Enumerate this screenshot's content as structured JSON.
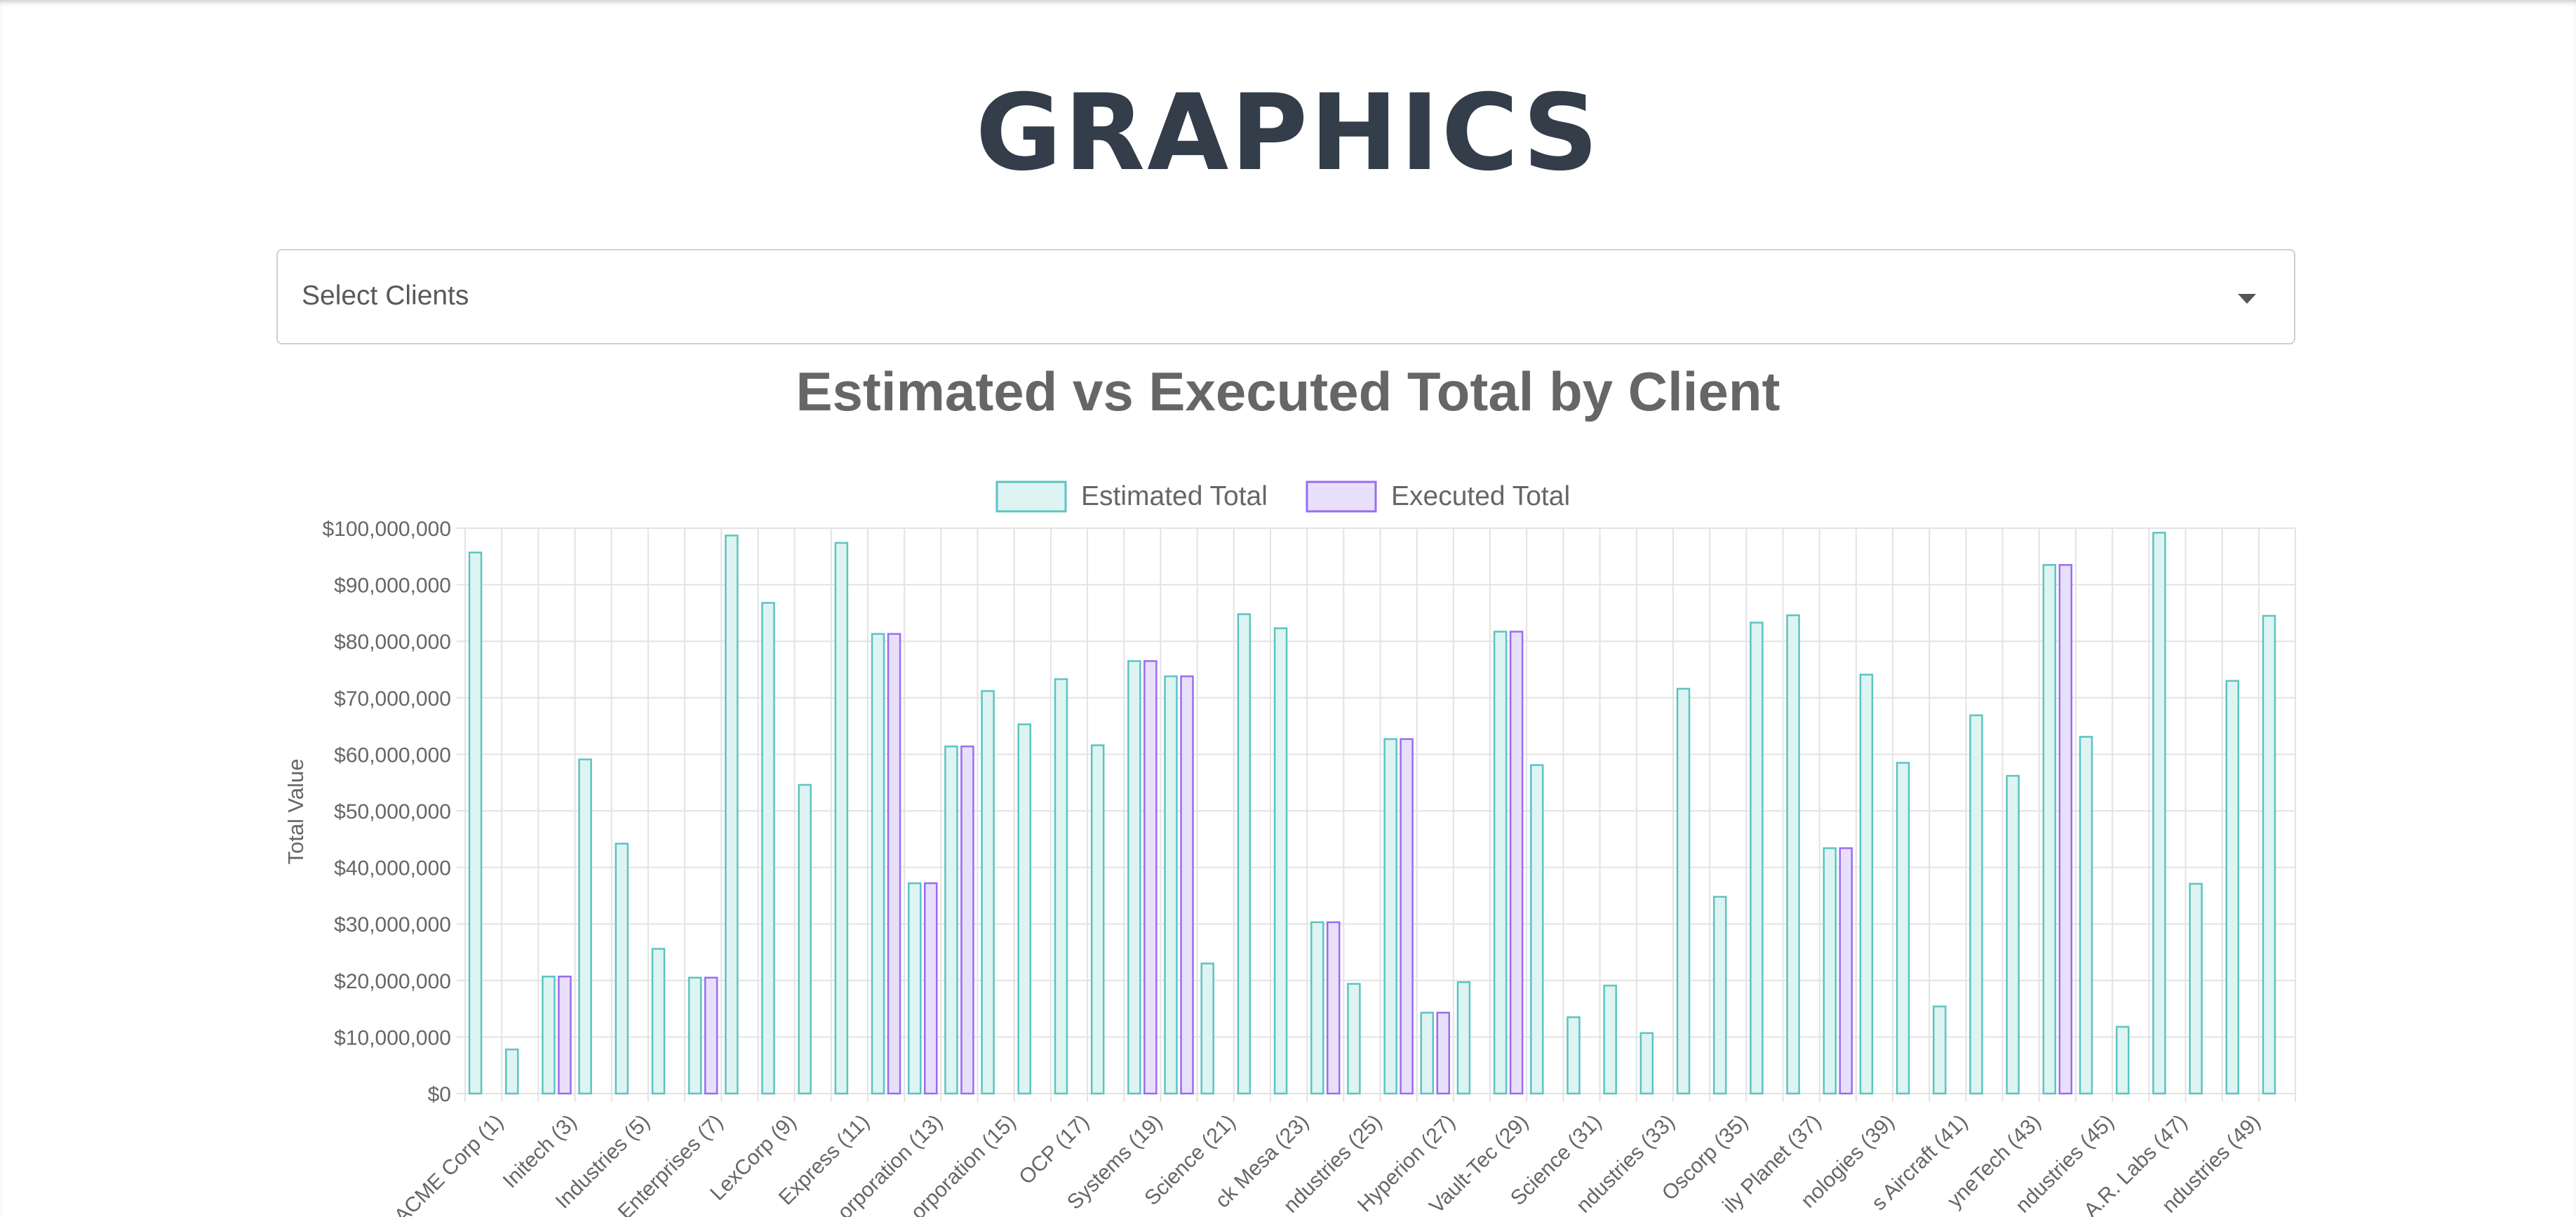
{
  "page": {
    "title": "GRAPHICS"
  },
  "client_select": {
    "placeholder": "Select Clients"
  },
  "colors": {
    "estimated_fill": "#ddf4f3",
    "estimated_border": "#5cc4c0",
    "executed_fill": "#e8e0fb",
    "executed_border": "#9a6cf0",
    "grid": "#e3e3e3",
    "text": "#666666"
  },
  "chart_data": {
    "type": "bar",
    "title": "Estimated vs Executed Total by Client",
    "ylabel": "Total Value",
    "ylim": [
      0,
      100000000
    ],
    "y_ticks": [
      "$0",
      "$10,000,000",
      "$20,000,000",
      "$30,000,000",
      "$40,000,000",
      "$50,000,000",
      "$60,000,000",
      "$70,000,000",
      "$80,000,000",
      "$90,000,000",
      "$100,000,000"
    ],
    "legend_position": "top-center",
    "grid": true,
    "categories": [
      "ACME Corp (1)",
      "",
      "Initech (3)",
      "",
      "Industries (5)",
      "",
      "Enterprises (7)",
      "",
      "LexCorp (9)",
      "",
      "Express (11)",
      "",
      "orporation (13)",
      "",
      "orporation (15)",
      "",
      "OCP (17)",
      "",
      "Systems (19)",
      "",
      "Science (21)",
      "",
      "ck Mesa (23)",
      "",
      "ndustries (25)",
      "",
      "Hyperion (27)",
      "",
      "Vault-Tec (29)",
      "",
      "Science (31)",
      "",
      "ndustries (33)",
      "",
      "Oscorp (35)",
      "",
      "ily Planet (37)",
      "",
      "nologies (39)",
      "",
      "s Aircraft (41)",
      "",
      "yneTech (43)",
      "",
      "ndustries (45)",
      "",
      "A.R. Labs (47)",
      "",
      "ndustries (49)",
      ""
    ],
    "series": [
      {
        "name": "Estimated Total",
        "values": [
          95700000,
          7800000,
          20700000,
          59100000,
          44200000,
          25600000,
          20500000,
          98700000,
          86800000,
          54600000,
          97400000,
          81300000,
          37200000,
          61400000,
          71200000,
          65300000,
          73300000,
          61600000,
          76500000,
          73800000,
          23000000,
          84800000,
          82300000,
          30300000,
          19400000,
          62700000,
          14300000,
          19700000,
          81700000,
          58100000,
          13500000,
          19100000,
          10700000,
          71600000,
          34800000,
          83300000,
          84600000,
          43400000,
          74100000,
          58500000,
          15400000,
          66900000,
          56200000,
          93500000,
          63100000,
          11800000,
          99200000,
          37100000,
          73000000,
          84500000
        ]
      },
      {
        "name": "Executed Total",
        "values": [
          0,
          0,
          20700000,
          0,
          0,
          0,
          20500000,
          0,
          0,
          0,
          0,
          81300000,
          37200000,
          61400000,
          0,
          0,
          0,
          0,
          76500000,
          73800000,
          0,
          0,
          0,
          30300000,
          0,
          62700000,
          14300000,
          0,
          81700000,
          0,
          0,
          0,
          0,
          0,
          0,
          0,
          0,
          43400000,
          0,
          0,
          0,
          0,
          0,
          93500000,
          0,
          0,
          0,
          0,
          0,
          0
        ]
      }
    ]
  }
}
